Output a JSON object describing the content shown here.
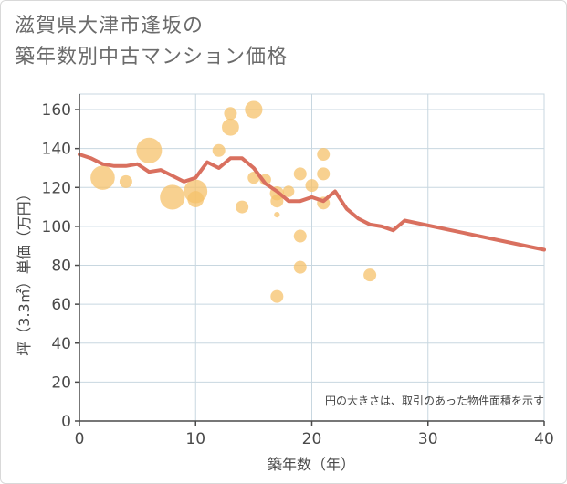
{
  "title": {
    "line1": "滋賀県大津市逢坂の",
    "line2": "築年数別中古マンション価格"
  },
  "note": "円の大きさは、取引のあった物件面積を示す",
  "colors": {
    "bubble": "#f5c26b",
    "line": "#d9705f",
    "grid": "#c8d7e0",
    "axis": "#4a4a4a"
  },
  "chart_data": {
    "type": "scatter",
    "xlabel": "築年数（年）",
    "ylabel": "坪（3.3㎡）単価（万円）",
    "xlim": [
      0,
      40
    ],
    "ylim": [
      0,
      168
    ],
    "x_ticks": [
      0,
      10,
      20,
      30,
      40
    ],
    "y_ticks": [
      0,
      20,
      40,
      60,
      80,
      100,
      120,
      140,
      160
    ],
    "grid": true,
    "series": [
      {
        "type": "bubble",
        "points": [
          {
            "x": 2,
            "y": 125,
            "size": 3.6
          },
          {
            "x": 4,
            "y": 123,
            "size": 1.0
          },
          {
            "x": 6,
            "y": 139,
            "size": 4.0
          },
          {
            "x": 8,
            "y": 115,
            "size": 3.8
          },
          {
            "x": 10,
            "y": 118,
            "size": 3.4
          },
          {
            "x": 10,
            "y": 114,
            "size": 1.6
          },
          {
            "x": 12,
            "y": 139,
            "size": 1.0
          },
          {
            "x": 13,
            "y": 158,
            "size": 1.0
          },
          {
            "x": 13,
            "y": 151,
            "size": 1.8
          },
          {
            "x": 14,
            "y": 110,
            "size": 1.0
          },
          {
            "x": 15,
            "y": 160,
            "size": 1.9
          },
          {
            "x": 15,
            "y": 125,
            "size": 0.9
          },
          {
            "x": 16,
            "y": 124,
            "size": 0.8
          },
          {
            "x": 17,
            "y": 117,
            "size": 1.2
          },
          {
            "x": 17,
            "y": 113,
            "size": 1.0
          },
          {
            "x": 17,
            "y": 106,
            "size": 0.2
          },
          {
            "x": 17,
            "y": 64,
            "size": 1.0
          },
          {
            "x": 18,
            "y": 118,
            "size": 0.8
          },
          {
            "x": 19,
            "y": 127,
            "size": 1.0
          },
          {
            "x": 19,
            "y": 95,
            "size": 1.0
          },
          {
            "x": 19,
            "y": 79,
            "size": 1.0
          },
          {
            "x": 20,
            "y": 121,
            "size": 1.0
          },
          {
            "x": 21,
            "y": 137,
            "size": 1.0
          },
          {
            "x": 21,
            "y": 127,
            "size": 1.0
          },
          {
            "x": 21,
            "y": 112,
            "size": 1.0
          },
          {
            "x": 25,
            "y": 75,
            "size": 1.0
          }
        ]
      },
      {
        "type": "line",
        "points": [
          {
            "x": 0,
            "y": 137
          },
          {
            "x": 1,
            "y": 135
          },
          {
            "x": 2,
            "y": 132
          },
          {
            "x": 3,
            "y": 131
          },
          {
            "x": 4,
            "y": 131
          },
          {
            "x": 5,
            "y": 132
          },
          {
            "x": 6,
            "y": 128
          },
          {
            "x": 7,
            "y": 129
          },
          {
            "x": 8,
            "y": 126
          },
          {
            "x": 9,
            "y": 123
          },
          {
            "x": 10,
            "y": 125
          },
          {
            "x": 11,
            "y": 133
          },
          {
            "x": 12,
            "y": 130
          },
          {
            "x": 13,
            "y": 135
          },
          {
            "x": 14,
            "y": 135
          },
          {
            "x": 15,
            "y": 130
          },
          {
            "x": 16,
            "y": 122
          },
          {
            "x": 17,
            "y": 118
          },
          {
            "x": 18,
            "y": 113
          },
          {
            "x": 19,
            "y": 113
          },
          {
            "x": 20,
            "y": 115
          },
          {
            "x": 21,
            "y": 113
          },
          {
            "x": 22,
            "y": 118
          },
          {
            "x": 23,
            "y": 109
          },
          {
            "x": 24,
            "y": 104
          },
          {
            "x": 25,
            "y": 101
          },
          {
            "x": 26,
            "y": 100
          },
          {
            "x": 27,
            "y": 98
          },
          {
            "x": 28,
            "y": 103
          },
          {
            "x": 40,
            "y": 88
          }
        ]
      }
    ]
  }
}
